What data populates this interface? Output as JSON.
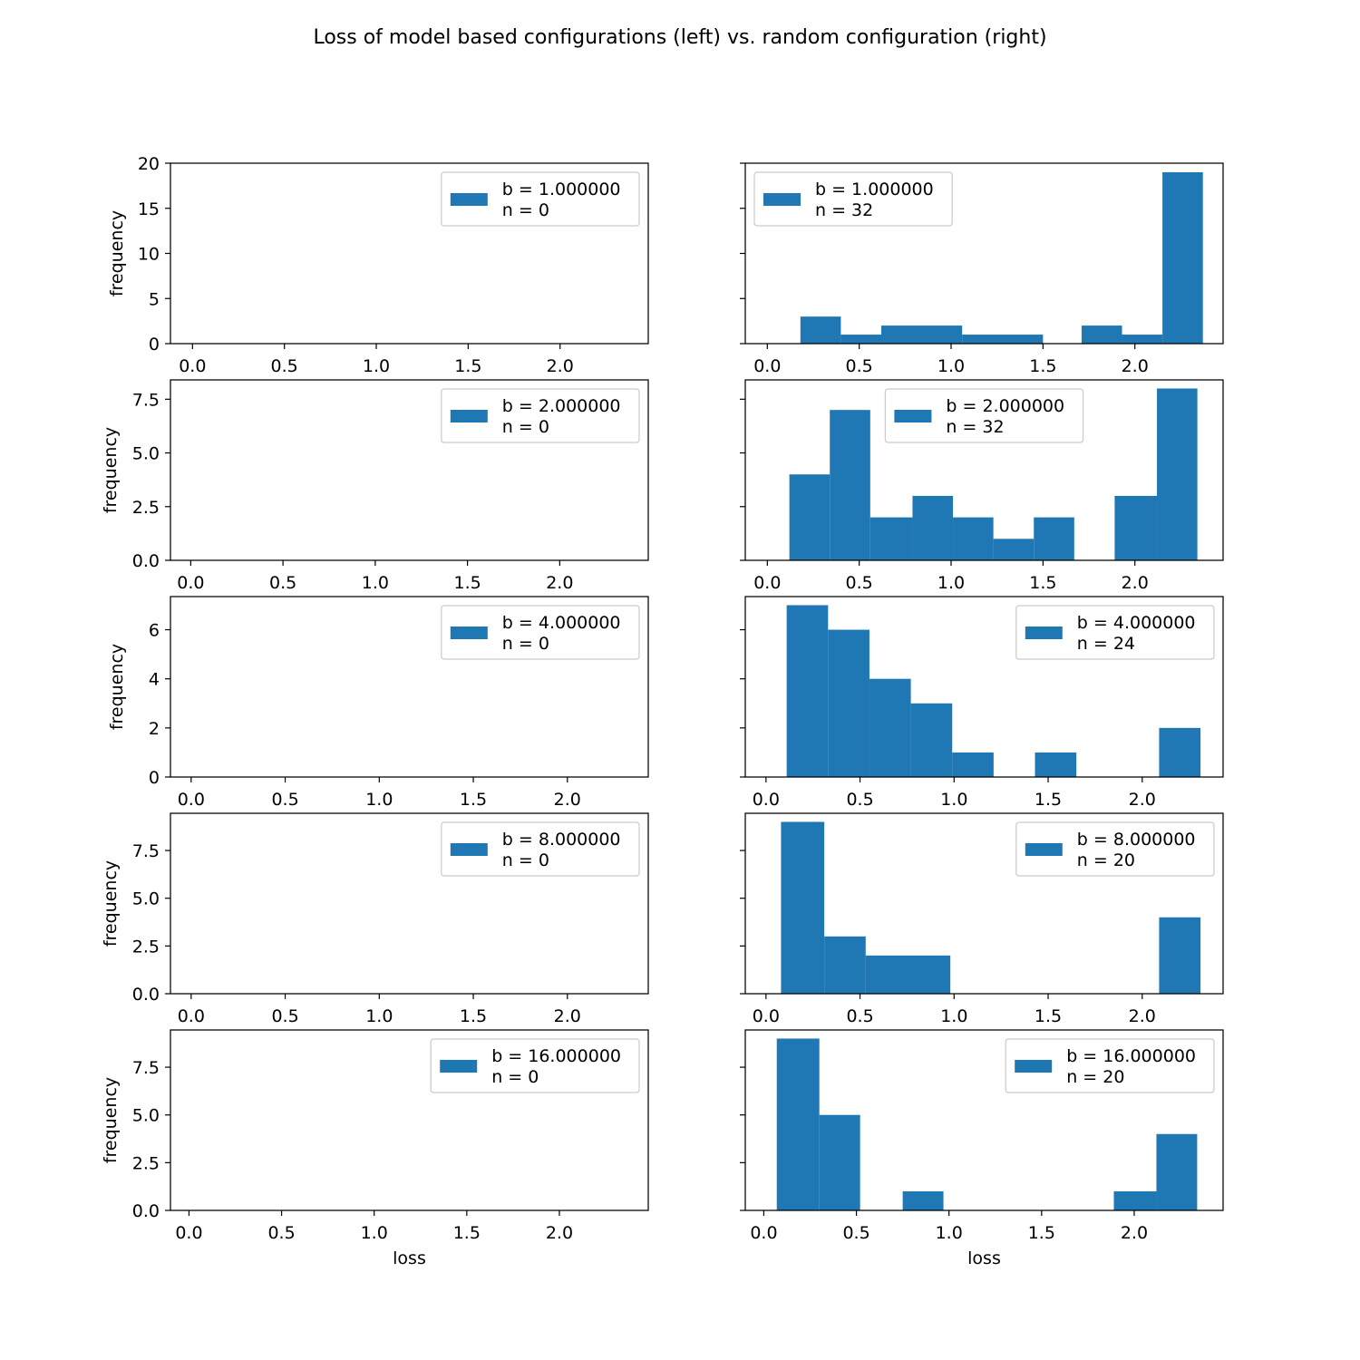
{
  "title": "Loss of model based configurations (left) vs. random configuration (right)",
  "colors": {
    "bar": "#1f77b4",
    "axis": "#000000",
    "legend_border": "#cccccc",
    "background": "#ffffff"
  },
  "chart_data": [
    {
      "type": "bar",
      "panel": "left-b1",
      "xlabel": "",
      "ylabel": "frequency",
      "xlim": [
        -0.12,
        2.48
      ],
      "ylim": [
        0,
        20
      ],
      "xticks": [
        0.0,
        0.5,
        1.0,
        1.5,
        2.0
      ],
      "xtick_labels": [
        "0.0",
        "0.5",
        "1.0",
        "1.5",
        "2.0"
      ],
      "yticks": [
        0,
        5,
        10,
        15,
        20
      ],
      "ytick_labels": [
        "0",
        "5",
        "10",
        "15",
        "20"
      ],
      "show_ytick_labels": true,
      "bars": [],
      "legend": {
        "line1": "b = 1.000000",
        "line2": " n = 0",
        "placement": "upper right"
      }
    },
    {
      "type": "bar",
      "panel": "right-b1",
      "xlabel": "",
      "ylabel": "",
      "xlim": [
        -0.12,
        2.48
      ],
      "ylim": [
        0,
        20
      ],
      "xticks": [
        0.0,
        0.5,
        1.0,
        1.5,
        2.0
      ],
      "xtick_labels": [
        "0.0",
        "0.5",
        "1.0",
        "1.5",
        "2.0"
      ],
      "yticks": [
        0,
        5,
        10,
        15,
        20
      ],
      "ytick_labels": [
        "0",
        "5",
        "10",
        "15",
        "20"
      ],
      "show_ytick_labels": false,
      "bars": [
        {
          "x0": 0.18,
          "x1": 0.4,
          "height": 3
        },
        {
          "x0": 0.4,
          "x1": 0.62,
          "height": 1
        },
        {
          "x0": 0.62,
          "x1": 1.06,
          "height": 2
        },
        {
          "x0": 1.06,
          "x1": 1.5,
          "height": 1
        },
        {
          "x0": 1.71,
          "x1": 1.93,
          "height": 2
        },
        {
          "x0": 1.93,
          "x1": 2.15,
          "height": 1
        },
        {
          "x0": 2.15,
          "x1": 2.37,
          "height": 19
        }
      ],
      "legend": {
        "line1": "b = 1.000000",
        "line2": " n = 32",
        "placement": "upper left"
      }
    },
    {
      "type": "bar",
      "panel": "left-b2",
      "xlabel": "",
      "ylabel": "frequency",
      "xlim": [
        -0.11,
        2.48
      ],
      "ylim": [
        0,
        8.4
      ],
      "xticks": [
        0.0,
        0.5,
        1.0,
        1.5,
        2.0
      ],
      "xtick_labels": [
        "0.0",
        "0.5",
        "1.0",
        "1.5",
        "2.0"
      ],
      "yticks": [
        0,
        2.5,
        5.0,
        7.5
      ],
      "ytick_labels": [
        "0.0",
        "2.5",
        "5.0",
        "7.5"
      ],
      "show_ytick_labels": true,
      "bars": [],
      "legend": {
        "line1": "b = 2.000000",
        "line2": " n = 0",
        "placement": "upper right"
      }
    },
    {
      "type": "bar",
      "panel": "right-b2",
      "xlabel": "",
      "ylabel": "",
      "xlim": [
        -0.12,
        2.48
      ],
      "ylim": [
        0,
        8.4
      ],
      "xticks": [
        0.0,
        0.5,
        1.0,
        1.5,
        2.0
      ],
      "xtick_labels": [
        "0.0",
        "0.5",
        "1.0",
        "1.5",
        "2.0"
      ],
      "yticks": [
        0,
        2.5,
        5.0,
        7.5
      ],
      "ytick_labels": [
        "0.0",
        "2.5",
        "5.0",
        "7.5"
      ],
      "show_ytick_labels": false,
      "bars": [
        {
          "x0": 0.12,
          "x1": 0.34,
          "height": 4
        },
        {
          "x0": 0.34,
          "x1": 0.56,
          "height": 7
        },
        {
          "x0": 0.56,
          "x1": 0.79,
          "height": 2
        },
        {
          "x0": 0.79,
          "x1": 1.01,
          "height": 3
        },
        {
          "x0": 1.01,
          "x1": 1.23,
          "height": 2
        },
        {
          "x0": 1.23,
          "x1": 1.45,
          "height": 1
        },
        {
          "x0": 1.45,
          "x1": 1.67,
          "height": 2
        },
        {
          "x0": 1.89,
          "x1": 2.12,
          "height": 3
        },
        {
          "x0": 2.12,
          "x1": 2.34,
          "height": 8
        }
      ],
      "legend": {
        "line1": "b = 2.000000",
        "line2": " n = 32",
        "placement": "upper center"
      }
    },
    {
      "type": "bar",
      "panel": "left-b4",
      "xlabel": "",
      "ylabel": "frequency",
      "xlim": [
        -0.11,
        2.43
      ],
      "ylim": [
        0,
        7.35
      ],
      "xticks": [
        0.0,
        0.5,
        1.0,
        1.5,
        2.0
      ],
      "xtick_labels": [
        "0.0",
        "0.5",
        "1.0",
        "1.5",
        "2.0"
      ],
      "yticks": [
        0,
        2,
        4,
        6
      ],
      "ytick_labels": [
        "0",
        "2",
        "4",
        "6"
      ],
      "show_ytick_labels": true,
      "bars": [],
      "legend": {
        "line1": "b = 4.000000",
        "line2": " n = 0",
        "placement": "upper right"
      }
    },
    {
      "type": "bar",
      "panel": "right-b4",
      "xlabel": "",
      "ylabel": "",
      "xlim": [
        -0.11,
        2.43
      ],
      "ylim": [
        0,
        7.35
      ],
      "xticks": [
        0.0,
        0.5,
        1.0,
        1.5,
        2.0
      ],
      "xtick_labels": [
        "0.0",
        "0.5",
        "1.0",
        "1.5",
        "2.0"
      ],
      "yticks": [
        0,
        2,
        4,
        6
      ],
      "ytick_labels": [
        "0",
        "2",
        "4",
        "6"
      ],
      "show_ytick_labels": false,
      "bars": [
        {
          "x0": 0.11,
          "x1": 0.33,
          "height": 7
        },
        {
          "x0": 0.33,
          "x1": 0.55,
          "height": 6
        },
        {
          "x0": 0.55,
          "x1": 0.77,
          "height": 4
        },
        {
          "x0": 0.77,
          "x1": 0.99,
          "height": 3
        },
        {
          "x0": 0.99,
          "x1": 1.21,
          "height": 1
        },
        {
          "x0": 1.43,
          "x1": 1.65,
          "height": 1
        },
        {
          "x0": 2.09,
          "x1": 2.31,
          "height": 2
        }
      ],
      "legend": {
        "line1": "b = 4.000000",
        "line2": " n = 24",
        "placement": "upper right"
      }
    },
    {
      "type": "bar",
      "panel": "left-b8",
      "xlabel": "",
      "ylabel": "frequency",
      "xlim": [
        -0.11,
        2.43
      ],
      "ylim": [
        0,
        9.45
      ],
      "xticks": [
        0.0,
        0.5,
        1.0,
        1.5,
        2.0
      ],
      "xtick_labels": [
        "0.0",
        "0.5",
        "1.0",
        "1.5",
        "2.0"
      ],
      "yticks": [
        0,
        2.5,
        5.0,
        7.5
      ],
      "ytick_labels": [
        "0.0",
        "2.5",
        "5.0",
        "7.5"
      ],
      "show_ytick_labels": true,
      "bars": [],
      "legend": {
        "line1": "b = 8.000000",
        "line2": " n = 0",
        "placement": "upper right"
      }
    },
    {
      "type": "bar",
      "panel": "right-b8",
      "xlabel": "",
      "ylabel": "",
      "xlim": [
        -0.11,
        2.43
      ],
      "ylim": [
        0,
        9.45
      ],
      "xticks": [
        0.0,
        0.5,
        1.0,
        1.5,
        2.0
      ],
      "xtick_labels": [
        "0.0",
        "0.5",
        "1.0",
        "1.5",
        "2.0"
      ],
      "yticks": [
        0,
        2.5,
        5.0,
        7.5
      ],
      "ytick_labels": [
        "0.0",
        "2.5",
        "5.0",
        "7.5"
      ],
      "show_ytick_labels": false,
      "bars": [
        {
          "x0": 0.08,
          "x1": 0.31,
          "height": 9
        },
        {
          "x0": 0.31,
          "x1": 0.53,
          "height": 3
        },
        {
          "x0": 0.53,
          "x1": 0.98,
          "height": 2
        },
        {
          "x0": 2.09,
          "x1": 2.31,
          "height": 4
        }
      ],
      "legend": {
        "line1": "b = 8.000000",
        "line2": " n = 20",
        "placement": "upper right"
      }
    },
    {
      "type": "bar",
      "panel": "left-b16",
      "xlabel": "loss",
      "ylabel": "frequency",
      "xlim": [
        -0.1,
        2.48
      ],
      "ylim": [
        0,
        9.45
      ],
      "xticks": [
        0.0,
        0.5,
        1.0,
        1.5,
        2.0
      ],
      "xtick_labels": [
        "0.0",
        "0.5",
        "1.0",
        "1.5",
        "2.0"
      ],
      "yticks": [
        0,
        2.5,
        5.0,
        7.5
      ],
      "ytick_labels": [
        "0.0",
        "2.5",
        "5.0",
        "7.5"
      ],
      "show_ytick_labels": true,
      "bars": [],
      "legend": {
        "line1": "b = 16.000000",
        "line2": " n = 0",
        "placement": "upper right"
      }
    },
    {
      "type": "bar",
      "panel": "right-b16",
      "xlabel": "loss",
      "ylabel": "",
      "xlim": [
        -0.1,
        2.48
      ],
      "ylim": [
        0,
        9.45
      ],
      "xticks": [
        0.0,
        0.5,
        1.0,
        1.5,
        2.0
      ],
      "xtick_labels": [
        "0.0",
        "0.5",
        "1.0",
        "1.5",
        "2.0"
      ],
      "yticks": [
        0,
        2.5,
        5.0,
        7.5
      ],
      "ytick_labels": [
        "0.0",
        "2.5",
        "5.0",
        "7.5"
      ],
      "show_ytick_labels": false,
      "bars": [
        {
          "x0": 0.07,
          "x1": 0.3,
          "height": 9
        },
        {
          "x0": 0.3,
          "x1": 0.52,
          "height": 5
        },
        {
          "x0": 0.75,
          "x1": 0.97,
          "height": 1
        },
        {
          "x0": 1.89,
          "x1": 2.12,
          "height": 1
        },
        {
          "x0": 2.12,
          "x1": 2.34,
          "height": 4
        }
      ],
      "legend": {
        "line1": "b = 16.000000",
        "line2": " n = 20",
        "placement": "upper right"
      }
    }
  ]
}
